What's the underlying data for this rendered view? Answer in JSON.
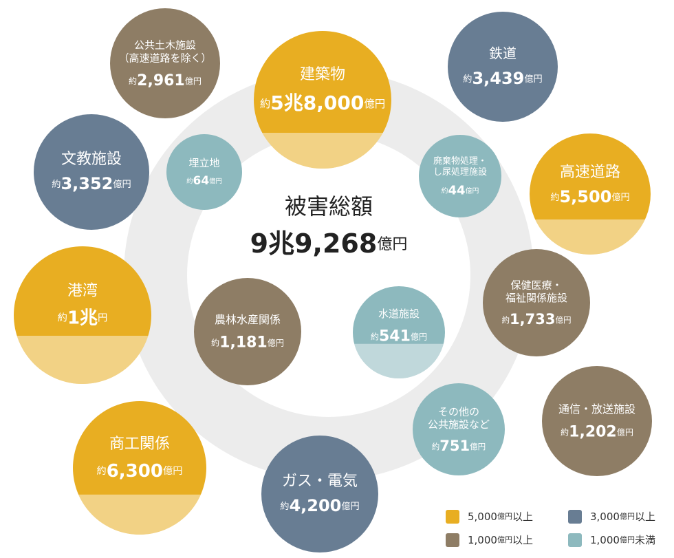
{
  "center": {
    "title": "被害総額",
    "amount": "9兆9,268",
    "unit": "億円"
  },
  "nodes": [
    {
      "name": [
        "建築物"
      ],
      "prefix": "約",
      "amount": "5兆8,000",
      "unit": "億円",
      "color": "#e8ae22"
    },
    {
      "name": [
        "鉄道"
      ],
      "prefix": "約",
      "amount": "3,439",
      "unit": "億円",
      "color": "#687d93"
    },
    {
      "name": [
        "公共土木施設",
        "（高速道路を除く）"
      ],
      "prefix": "約",
      "amount": "2,961",
      "unit": "億円",
      "color": "#8e7d65"
    },
    {
      "name": [
        "文教施設"
      ],
      "prefix": "約",
      "amount": "3,352",
      "unit": "億円",
      "color": "#687d93"
    },
    {
      "name": [
        "高速道路"
      ],
      "prefix": "約",
      "amount": "5,500",
      "unit": "億円",
      "color": "#e8ae22"
    },
    {
      "name": [
        "港湾"
      ],
      "prefix": "約",
      "amount": "1兆",
      "unit": "円",
      "color": "#e8ae22"
    },
    {
      "name": [
        "保健医療・",
        "福祉関係施設"
      ],
      "prefix": "約",
      "amount": "1,733",
      "unit": "億円",
      "color": "#8e7d65"
    },
    {
      "name": [
        "通信・放送施設"
      ],
      "prefix": "約",
      "amount": "1,202",
      "unit": "億円",
      "color": "#8e7d65"
    },
    {
      "name": [
        "商工関係"
      ],
      "prefix": "約",
      "amount": "6,300",
      "unit": "億円",
      "color": "#e8ae22"
    },
    {
      "name": [
        "ガス・電気"
      ],
      "prefix": "約",
      "amount": "4,200",
      "unit": "億円",
      "color": "#687d93"
    },
    {
      "name": [
        "その他の",
        "公共施設など"
      ],
      "prefix": "約",
      "amount": "751",
      "unit": "億円",
      "color": "#8db9be"
    },
    {
      "name": [
        "水道施設"
      ],
      "prefix": "約",
      "amount": "541",
      "unit": "億円",
      "color": "#8db9be"
    },
    {
      "name": [
        "農林水産関係"
      ],
      "prefix": "約",
      "amount": "1,181",
      "unit": "億円",
      "color": "#8e7d65"
    },
    {
      "name": [
        "埋立地"
      ],
      "prefix": "約",
      "amount": "64",
      "unit": "億円",
      "color": "#8db9be"
    },
    {
      "name": [
        "廃棄物処理・",
        "し尿処理施設"
      ],
      "prefix": "約",
      "amount": "44",
      "unit": "億円",
      "color": "#8db9be"
    }
  ],
  "legend": [
    {
      "amount": "5,000",
      "unit": "億円",
      "suffix": "以上",
      "color": "#e8ae22"
    },
    {
      "amount": "3,000",
      "unit": "億円",
      "suffix": "以上",
      "color": "#687d93"
    },
    {
      "amount": "1,000",
      "unit": "億円",
      "suffix": "以上",
      "color": "#8e7d65"
    },
    {
      "amount": "1,000",
      "unit": "億円",
      "suffix": "未満",
      "color": "#8db9be"
    }
  ]
}
